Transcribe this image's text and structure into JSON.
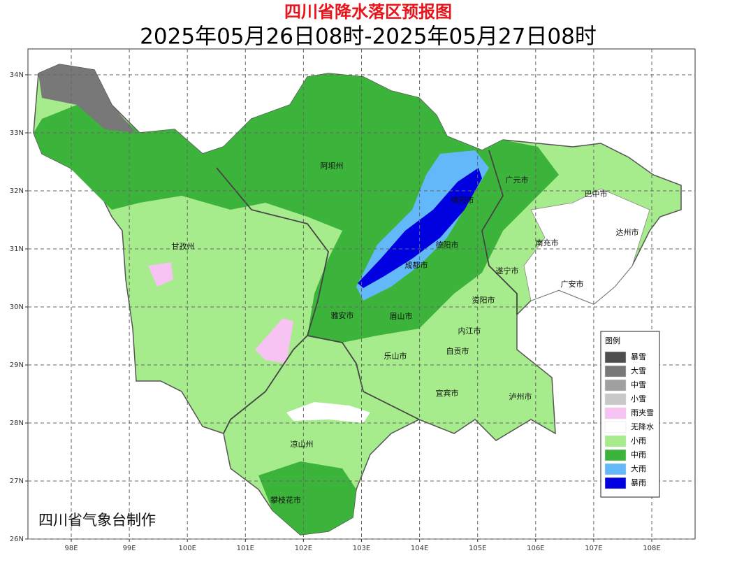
{
  "header": {
    "title": "四川省降水落区预报图",
    "subtitle": "2025年05月26日08时-2025年05月27日08时"
  },
  "map": {
    "lon_ticks": [
      {
        "value": 98,
        "label": "98E"
      },
      {
        "value": 99,
        "label": "99E"
      },
      {
        "value": 100,
        "label": "100E"
      },
      {
        "value": 101,
        "label": "101E"
      },
      {
        "value": 102,
        "label": "102E"
      },
      {
        "value": 103,
        "label": "103E"
      },
      {
        "value": 104,
        "label": "104E"
      },
      {
        "value": 105,
        "label": "105E"
      },
      {
        "value": 106,
        "label": "106E"
      },
      {
        "value": 107,
        "label": "107E"
      },
      {
        "value": 108,
        "label": "108E"
      }
    ],
    "lat_ticks": [
      {
        "value": 34,
        "label": "34N"
      },
      {
        "value": 33,
        "label": "33N"
      },
      {
        "value": 32,
        "label": "32N"
      },
      {
        "value": 31,
        "label": "31N"
      },
      {
        "value": 30,
        "label": "30N"
      },
      {
        "value": 29,
        "label": "29N"
      },
      {
        "value": 28,
        "label": "28N"
      },
      {
        "value": 27,
        "label": "27N"
      },
      {
        "value": 26,
        "label": "26N"
      }
    ],
    "cities": [
      "阿坝州",
      "广元市",
      "巴中市",
      "绵阳市",
      "达州市",
      "甘孜州",
      "德阳市",
      "南充市",
      "成都市",
      "遂宁市",
      "广安市",
      "资阳市",
      "雅安市",
      "眉山市",
      "内江市",
      "自贡市",
      "乐山市",
      "宜宾市",
      "泸州市",
      "凉山州",
      "攀枝花市"
    ]
  },
  "legend": {
    "title": "图例",
    "items": [
      {
        "label": "暴雪",
        "color": "#4e4e4e"
      },
      {
        "label": "大雪",
        "color": "#787878"
      },
      {
        "label": "中雪",
        "color": "#a0a0a0"
      },
      {
        "label": "小雪",
        "color": "#c8c8c8"
      },
      {
        "label": "雨夹雪",
        "color": "#f7c3f3"
      },
      {
        "label": "无降水",
        "color": "#ffffff"
      },
      {
        "label": "小雨",
        "color": "#a6ec8c"
      },
      {
        "label": "中雨",
        "color": "#3cb43c"
      },
      {
        "label": "大雨",
        "color": "#62b8f8"
      },
      {
        "label": "暴雨",
        "color": "#0000e0"
      }
    ]
  },
  "footer": {
    "credit": "四川省气象台制作"
  }
}
